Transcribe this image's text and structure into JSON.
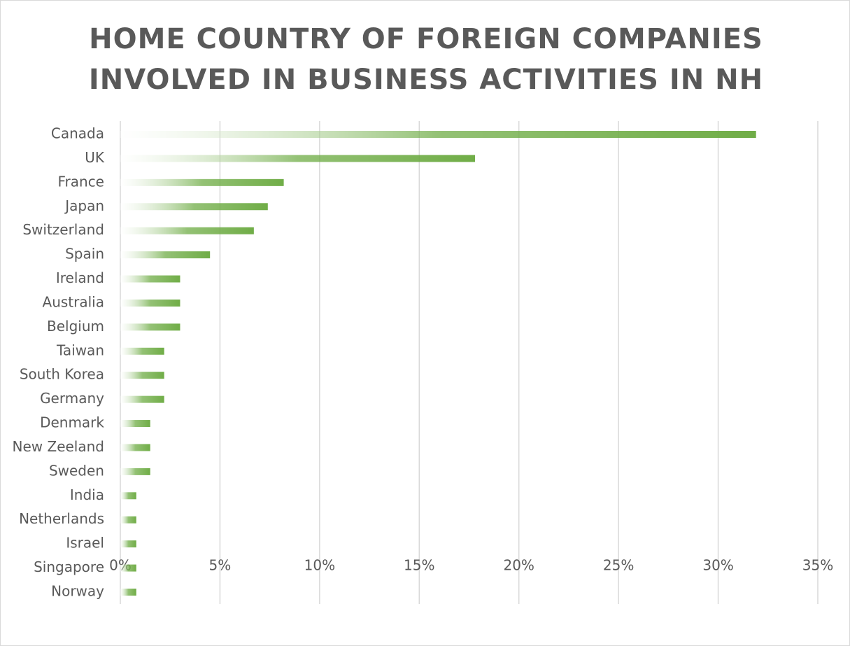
{
  "chart_data": {
    "type": "bar",
    "orientation": "horizontal",
    "title": "HOME COUNTRY OF FOREIGN COMPANIES INVOLVED IN BUSINESS ACTIVITIES IN NH",
    "categories": [
      "Canada",
      "UK",
      "France",
      "Japan",
      "Switzerland",
      "Spain",
      "Ireland",
      "Australia",
      "Belgium",
      "Taiwan",
      "South Korea",
      "Germany",
      "Denmark",
      "New Zeeland",
      "Sweden",
      "India",
      "Netherlands",
      "Israel",
      "Singapore",
      "Norway"
    ],
    "values": [
      31.9,
      17.8,
      8.2,
      7.4,
      6.7,
      4.5,
      3.0,
      3.0,
      3.0,
      2.2,
      2.2,
      2.2,
      1.5,
      1.5,
      1.5,
      0.8,
      0.8,
      0.8,
      0.8,
      0.8
    ],
    "color": "#70ad47",
    "xlim": [
      0,
      35
    ],
    "xticks": [
      {
        "value": 0,
        "label": "0%"
      },
      {
        "value": 5,
        "label": "5%"
      },
      {
        "value": 10,
        "label": "10%"
      },
      {
        "value": 15,
        "label": "15%"
      },
      {
        "value": 20,
        "label": "20%"
      },
      {
        "value": 25,
        "label": "25%"
      },
      {
        "value": 30,
        "label": "30%"
      },
      {
        "value": 35,
        "label": "35%"
      }
    ],
    "grid": true
  }
}
